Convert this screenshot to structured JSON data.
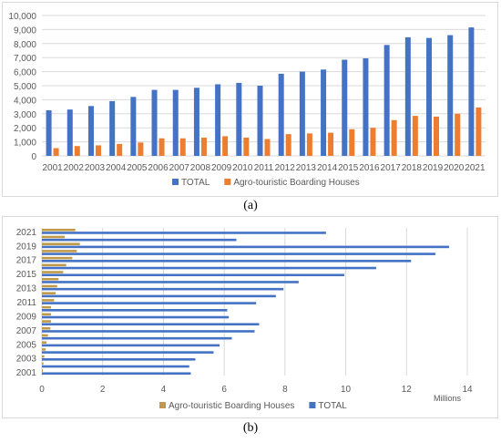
{
  "captions": {
    "a": "(a)",
    "b": "(b)"
  },
  "colors": {
    "total": "#4472C4",
    "agro": "#ED7D31",
    "agro_b": "#C09A4A",
    "grid": "#d9d9d9",
    "axis_text": "#595959"
  },
  "chart_data": [
    {
      "type": "bar",
      "orientation": "vertical",
      "categories": [
        "2001",
        "2002",
        "2003",
        "2004",
        "2005",
        "2006",
        "2007",
        "2008",
        "2009",
        "2010",
        "2011",
        "2012",
        "2013",
        "2014",
        "2015",
        "2016",
        "2017",
        "2018",
        "2019",
        "2020",
        "2021"
      ],
      "series": [
        {
          "name": "TOTAL",
          "color": "#4472C4",
          "values": [
            3250,
            3300,
            3550,
            3900,
            4200,
            4700,
            4700,
            4850,
            5100,
            5200,
            5000,
            5850,
            6000,
            6150,
            6850,
            6950,
            7900,
            8450,
            8400,
            8600,
            9150
          ]
        },
        {
          "name": "Agro-touristic Boarding Houses",
          "color": "#ED7D31",
          "values": [
            550,
            700,
            750,
            850,
            950,
            1250,
            1250,
            1300,
            1400,
            1300,
            1200,
            1550,
            1600,
            1650,
            1900,
            2000,
            2550,
            2850,
            2800,
            3000,
            3450
          ]
        }
      ],
      "ylim": [
        0,
        10000
      ],
      "yticks": [
        "0",
        "1,000",
        "2,000",
        "3,000",
        "4,000",
        "5,000",
        "6,000",
        "7,000",
        "8,000",
        "9,000",
        "10,000"
      ],
      "grid": true,
      "legend_position": "bottom"
    },
    {
      "type": "bar",
      "orientation": "horizontal",
      "categories": [
        "2001",
        "2002",
        "2003",
        "2004",
        "2005",
        "2006",
        "2007",
        "2008",
        "2009",
        "2010",
        "2011",
        "2012",
        "2013",
        "2014",
        "2015",
        "2016",
        "2017",
        "2018",
        "2019",
        "2020",
        "2021"
      ],
      "category_labels": [
        "2001",
        "2003",
        "2005",
        "2007",
        "2009",
        "2011",
        "2013",
        "2015",
        "2017",
        "2019",
        "2021"
      ],
      "series": [
        {
          "name": "Agro-touristic Boarding Houses",
          "color": "#C09A4A",
          "values": [
            0.03,
            0.05,
            0.08,
            0.12,
            0.15,
            0.2,
            0.28,
            0.3,
            0.3,
            0.3,
            0.4,
            0.45,
            0.5,
            0.55,
            0.7,
            0.8,
            1.0,
            1.15,
            1.25,
            0.75,
            1.1
          ]
        },
        {
          "name": "TOTAL",
          "color": "#4472C4",
          "values": [
            4.9,
            4.85,
            5.05,
            5.65,
            5.85,
            6.25,
            7.0,
            7.15,
            6.15,
            6.1,
            7.05,
            7.7,
            7.95,
            8.45,
            9.95,
            11.0,
            12.15,
            12.95,
            13.4,
            6.4,
            9.35
          ]
        }
      ],
      "xlim": [
        0,
        14
      ],
      "xticks": [
        "0",
        "2",
        "4",
        "6",
        "8",
        "10",
        "12",
        "14"
      ],
      "xunit": "Millions",
      "grid": true,
      "legend_position": "bottom"
    }
  ]
}
